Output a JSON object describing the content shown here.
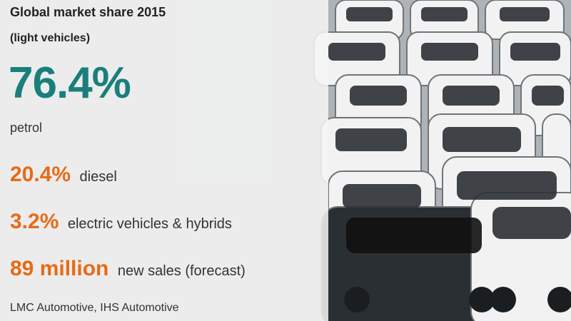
{
  "title": "Global market share 2015",
  "subtitle": "(light vehicles)",
  "petrol": {
    "value": "76.4%",
    "label": "petrol"
  },
  "stats": [
    {
      "value": "20.4%",
      "label": "diesel"
    },
    {
      "value": "3.2%",
      "label": "electric vehicles & hybrids"
    },
    {
      "value": "89 million",
      "label": "new sales (forecast)"
    }
  ],
  "source": "LMC Automotive, IHS Automotive",
  "colors": {
    "teal": "#1a7f7b",
    "orange": "#e76b16",
    "panel_bg": "#f6f6f6"
  }
}
